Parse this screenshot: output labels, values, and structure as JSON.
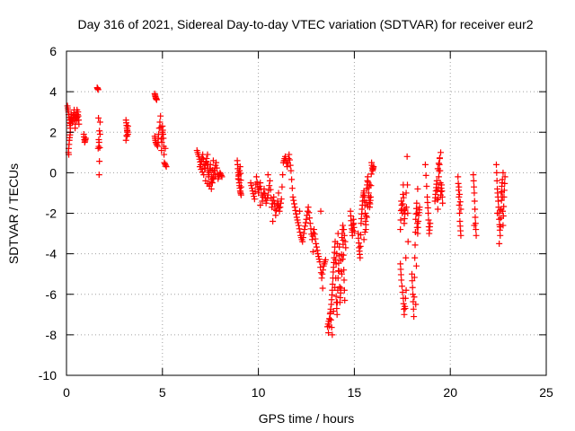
{
  "chart_data": {
    "type": "scatter",
    "title": "Day 316 of 2021, Sidereal Day-to-day VTEC variation (SDTVAR) for receiver eur2",
    "xlabel": "GPS time / hours",
    "ylabel": "SDTVAR / TECUs",
    "xlim": [
      0,
      25
    ],
    "ylim": [
      -10,
      6
    ],
    "xticks": [
      0,
      5,
      10,
      15,
      20,
      25
    ],
    "yticks": [
      -10,
      -8,
      -6,
      -4,
      -2,
      0,
      2,
      4,
      6
    ],
    "grid": true,
    "marker": "+",
    "marker_color": "#ff0000",
    "series": [
      {
        "name": "SDTVAR",
        "segments": [
          [
            [
              0.05,
              3.3
            ],
            [
              0.1,
              3.0
            ],
            [
              0.15,
              2.6
            ],
            [
              0.2,
              2.2
            ],
            [
              0.25,
              2.9
            ],
            [
              0.3,
              2.5
            ],
            [
              0.35,
              2.7
            ],
            [
              0.4,
              3.1
            ],
            [
              0.45,
              2.4
            ],
            [
              0.5,
              2.9
            ],
            [
              0.55,
              2.6
            ],
            [
              0.6,
              3.0
            ],
            [
              0.65,
              2.4
            ],
            [
              0.1,
              1.0
            ],
            [
              0.15,
              1.6
            ],
            [
              0.2,
              2.0
            ],
            [
              0.12,
              0.9
            ],
            [
              0.55,
              3.1
            ],
            [
              0.45,
              2.2
            ]
          ],
          [
            [
              0.9,
              1.9
            ],
            [
              0.95,
              1.5
            ],
            [
              1.0,
              1.7
            ]
          ],
          [
            [
              1.6,
              4.2
            ],
            [
              1.65,
              4.1
            ],
            [
              1.7,
              -0.1
            ],
            [
              1.75,
              1.9
            ],
            [
              1.7,
              1.5
            ],
            [
              1.65,
              1.2
            ],
            [
              1.75,
              2.5
            ]
          ],
          [
            [
              3.1,
              2.6
            ],
            [
              3.15,
              2.2
            ],
            [
              3.2,
              1.9
            ],
            [
              3.1,
              1.6
            ],
            [
              3.2,
              2.3
            ],
            [
              3.15,
              1.8
            ]
          ],
          [
            [
              4.6,
              3.9
            ],
            [
              4.65,
              3.7
            ],
            [
              4.7,
              3.6
            ],
            [
              4.6,
              1.8
            ],
            [
              4.65,
              1.5
            ],
            [
              4.75,
              1.3
            ],
            [
              4.8,
              1.9
            ],
            [
              4.9,
              2.8
            ],
            [
              4.95,
              1.1
            ],
            [
              5.0,
              2.3
            ],
            [
              5.05,
              1.7
            ],
            [
              5.1,
              0.5
            ],
            [
              5.2,
              0.3
            ],
            [
              5.15,
              1.2
            ],
            [
              5.0,
              2.0
            ]
          ],
          [
            [
              6.8,
              1.1
            ],
            [
              6.9,
              0.8
            ],
            [
              7.0,
              0.4
            ],
            [
              7.1,
              0.9
            ],
            [
              7.2,
              0.2
            ],
            [
              7.3,
              0.7
            ],
            [
              7.4,
              -0.2
            ],
            [
              7.5,
              0.4
            ],
            [
              7.6,
              -0.5
            ],
            [
              7.7,
              0.1
            ],
            [
              7.8,
              0.5
            ],
            [
              7.9,
              -0.3
            ],
            [
              8.0,
              0.0
            ],
            [
              8.1,
              -0.2
            ],
            [
              7.25,
              -0.4
            ],
            [
              7.55,
              -0.8
            ],
            [
              7.65,
              0.6
            ],
            [
              6.95,
              0.3
            ],
            [
              7.15,
              -0.1
            ],
            [
              7.35,
              0.9
            ],
            [
              7.45,
              -0.6
            ],
            [
              7.75,
              -0.1
            ]
          ],
          [
            [
              8.9,
              0.6
            ],
            [
              8.95,
              0.0
            ],
            [
              9.0,
              -0.5
            ],
            [
              9.05,
              -0.9
            ],
            [
              9.1,
              -1.1
            ],
            [
              8.95,
              -0.3
            ],
            [
              9.05,
              0.3
            ],
            [
              9.1,
              -0.7
            ]
          ],
          [
            [
              9.6,
              -0.5
            ],
            [
              9.7,
              -0.9
            ],
            [
              9.8,
              -1.3
            ],
            [
              9.9,
              -0.2
            ],
            [
              10.0,
              -1.0
            ],
            [
              10.1,
              -0.5
            ],
            [
              10.2,
              -1.4
            ],
            [
              10.3,
              -0.8
            ],
            [
              10.4,
              -1.5
            ],
            [
              10.5,
              -1.1
            ],
            [
              10.6,
              -0.4
            ],
            [
              10.7,
              -1.7
            ],
            [
              10.8,
              -1.2
            ],
            [
              10.9,
              -2.1
            ],
            [
              11.0,
              -1.4
            ],
            [
              11.1,
              -1.9
            ],
            [
              11.2,
              -1.3
            ],
            [
              11.3,
              0.5
            ],
            [
              11.4,
              0.8
            ],
            [
              11.5,
              0.3
            ],
            [
              11.6,
              0.9
            ],
            [
              11.7,
              0.1
            ],
            [
              11.8,
              -1.2
            ],
            [
              11.9,
              -1.7
            ],
            [
              12.0,
              -2.2
            ],
            [
              12.1,
              -2.6
            ],
            [
              12.2,
              -3.1
            ],
            [
              12.3,
              -3.4
            ],
            [
              12.4,
              -2.8
            ],
            [
              12.5,
              -2.3
            ],
            [
              12.6,
              -1.7
            ],
            [
              12.7,
              -2.5
            ],
            [
              12.8,
              -3.3
            ],
            [
              12.9,
              -2.8
            ],
            [
              13.0,
              -3.5
            ],
            [
              13.1,
              -4.0
            ],
            [
              13.2,
              -4.4
            ],
            [
              13.3,
              -5.2
            ],
            [
              13.4,
              -4.6
            ],
            [
              13.5,
              -4.3
            ],
            [
              10.5,
              -0.1
            ],
            [
              10.1,
              -1.6
            ],
            [
              11.05,
              -1.0
            ],
            [
              12.15,
              -1.9
            ],
            [
              12.85,
              -3.9
            ],
            [
              13.35,
              -5.7
            ],
            [
              13.25,
              -1.9
            ],
            [
              10.75,
              -2.4
            ]
          ],
          [
            [
              13.6,
              -7.6
            ],
            [
              13.7,
              -7.2
            ],
            [
              13.8,
              -6.5
            ],
            [
              13.85,
              -5.8
            ],
            [
              13.9,
              -4.9
            ],
            [
              13.95,
              -4.2
            ],
            [
              14.0,
              -3.4
            ],
            [
              14.05,
              -6.1
            ],
            [
              14.1,
              -7.0
            ],
            [
              14.15,
              -5.2
            ],
            [
              14.2,
              -4.1
            ],
            [
              14.25,
              -6.4
            ],
            [
              14.3,
              -5.7
            ],
            [
              14.35,
              -3.2
            ],
            [
              14.4,
              -2.6
            ],
            [
              14.45,
              -4.8
            ],
            [
              14.5,
              -6.3
            ],
            [
              13.65,
              -7.9
            ],
            [
              13.75,
              -6.9
            ],
            [
              13.85,
              -8.0
            ],
            [
              14.05,
              -4.5
            ],
            [
              14.15,
              -3.0
            ],
            [
              14.35,
              -5.0
            ],
            [
              14.45,
              -2.8
            ],
            [
              14.55,
              -3.7
            ]
          ],
          [
            [
              14.8,
              -1.9
            ],
            [
              14.85,
              -2.6
            ],
            [
              14.9,
              -3.1
            ],
            [
              14.95,
              -2.3
            ],
            [
              15.0,
              -2.9
            ]
          ],
          [
            [
              15.2,
              -3.0
            ],
            [
              15.25,
              -3.7
            ],
            [
              15.3,
              -4.2
            ],
            [
              15.35,
              -2.5
            ],
            [
              15.4,
              -1.8
            ],
            [
              15.45,
              -1.2
            ],
            [
              15.5,
              -0.9
            ],
            [
              15.55,
              -1.6
            ],
            [
              15.6,
              -2.8
            ],
            [
              15.65,
              -0.8
            ],
            [
              15.7,
              -0.2
            ],
            [
              15.75,
              -1.0
            ],
            [
              15.8,
              -1.7
            ],
            [
              15.85,
              -1.2
            ],
            [
              15.9,
              0.5
            ],
            [
              15.95,
              0.1
            ],
            [
              16.0,
              0.3
            ],
            [
              15.5,
              -3.3
            ],
            [
              15.65,
              -2.2
            ],
            [
              15.8,
              -0.6
            ]
          ],
          [
            [
              17.4,
              -2.8
            ],
            [
              17.45,
              -1.4
            ],
            [
              17.5,
              -2.0
            ],
            [
              17.55,
              -0.6
            ],
            [
              17.6,
              -2.5
            ],
            [
              17.65,
              -1.8
            ],
            [
              17.4,
              -4.5
            ],
            [
              17.45,
              -5.3
            ],
            [
              17.55,
              -6.2
            ],
            [
              17.6,
              -7.0
            ],
            [
              17.7,
              -5.8
            ],
            [
              17.65,
              -6.7
            ],
            [
              17.75,
              0.8
            ],
            [
              17.8,
              -3.4
            ],
            [
              17.7,
              -1.0
            ]
          ],
          [
            [
              18.0,
              -5.0
            ],
            [
              18.05,
              -6.0
            ],
            [
              18.1,
              -7.1
            ],
            [
              18.15,
              -4.2
            ],
            [
              18.2,
              -2.3
            ],
            [
              18.25,
              -1.5
            ],
            [
              18.3,
              -3.0
            ],
            [
              18.35,
              -2.1
            ],
            [
              18.4,
              -1.7
            ],
            [
              18.2,
              -6.5
            ],
            [
              18.3,
              -0.8
            ]
          ],
          [
            [
              18.7,
              0.4
            ],
            [
              18.8,
              -1.2
            ],
            [
              18.85,
              -2.0
            ],
            [
              18.9,
              -3.0
            ],
            [
              18.95,
              -2.5
            ]
          ],
          [
            [
              19.2,
              -1.4
            ],
            [
              19.25,
              -0.9
            ],
            [
              19.3,
              -0.4
            ],
            [
              19.35,
              -1.8
            ],
            [
              19.4,
              -0.2
            ],
            [
              19.45,
              0.7
            ],
            [
              19.5,
              -1.1
            ],
            [
              19.55,
              -0.6
            ],
            [
              19.6,
              -1.5
            ],
            [
              19.35,
              0.2
            ],
            [
              19.5,
              1.0
            ]
          ],
          [
            [
              20.4,
              -0.2
            ],
            [
              20.45,
              -1.2
            ],
            [
              20.5,
              -2.4
            ],
            [
              20.55,
              -3.1
            ],
            [
              20.45,
              -0.7
            ],
            [
              20.55,
              -1.8
            ]
          ],
          [
            [
              21.2,
              -0.1
            ],
            [
              21.25,
              -1.0
            ],
            [
              21.3,
              -2.2
            ],
            [
              21.35,
              -3.1
            ],
            [
              21.25,
              -2.6
            ]
          ],
          [
            [
              22.4,
              0.4
            ],
            [
              22.45,
              -0.8
            ],
            [
              22.5,
              -1.4
            ],
            [
              22.55,
              -2.3
            ],
            [
              22.6,
              -3.1
            ],
            [
              22.65,
              -1.8
            ],
            [
              22.7,
              -0.5
            ],
            [
              22.75,
              -2.6
            ],
            [
              22.8,
              -1.2
            ],
            [
              22.85,
              -0.2
            ],
            [
              22.55,
              -3.5
            ],
            [
              22.65,
              -1.0
            ],
            [
              22.75,
              0.0
            ],
            [
              22.45,
              -2.0
            ]
          ]
        ]
      }
    ]
  }
}
